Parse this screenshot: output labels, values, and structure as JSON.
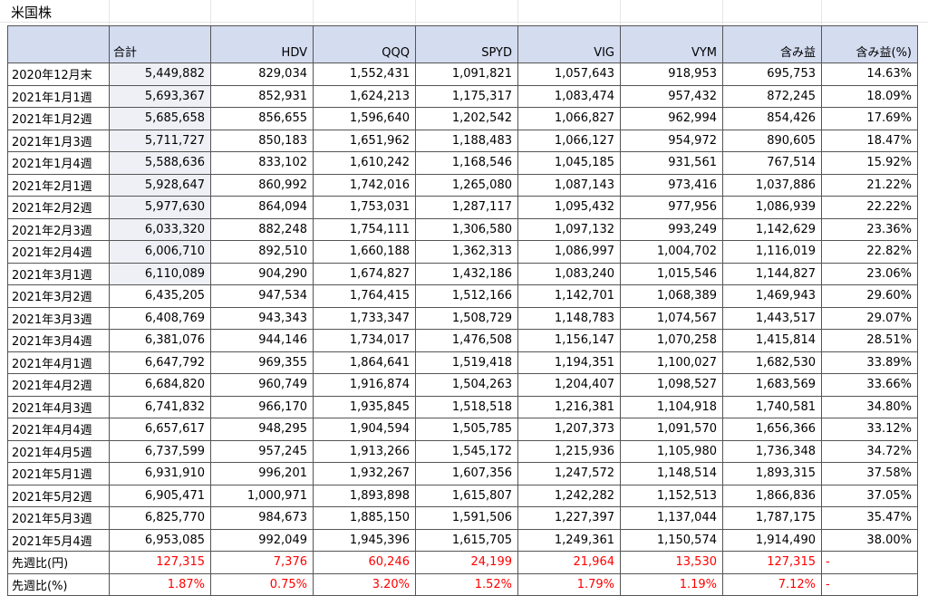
{
  "sheet": {
    "title": "米国株"
  },
  "headers": [
    "",
    "合計",
    "HDV",
    "QQQ",
    "SPYD",
    "VIG",
    "VYM",
    "含み益",
    "含み益(%)"
  ],
  "rows": [
    {
      "label": "2020年12月末",
      "values": [
        "5,449,882",
        "829,034",
        "1,552,431",
        "1,091,821",
        "1,057,643",
        "918,953",
        "695,753",
        "14.63%"
      ]
    },
    {
      "label": "2021年1月1週",
      "values": [
        "5,693,367",
        "852,931",
        "1,624,213",
        "1,175,317",
        "1,083,474",
        "957,432",
        "872,245",
        "18.09%"
      ]
    },
    {
      "label": "2021年1月2週",
      "values": [
        "5,685,658",
        "856,655",
        "1,596,640",
        "1,202,542",
        "1,066,827",
        "962,994",
        "854,426",
        "17.69%"
      ]
    },
    {
      "label": "2021年1月3週",
      "values": [
        "5,711,727",
        "850,183",
        "1,651,962",
        "1,188,483",
        "1,066,127",
        "954,972",
        "890,605",
        "18.47%"
      ]
    },
    {
      "label": "2021年1月4週",
      "values": [
        "5,588,636",
        "833,102",
        "1,610,242",
        "1,168,546",
        "1,045,185",
        "931,561",
        "767,514",
        "15.92%"
      ]
    },
    {
      "label": "2021年2月1週",
      "values": [
        "5,928,647",
        "860,992",
        "1,742,016",
        "1,265,080",
        "1,087,143",
        "973,416",
        "1,037,886",
        "21.22%"
      ]
    },
    {
      "label": "2021年2月2週",
      "values": [
        "5,977,630",
        "864,094",
        "1,753,031",
        "1,287,117",
        "1,095,432",
        "977,956",
        "1,086,939",
        "22.22%"
      ]
    },
    {
      "label": "2021年2月3週",
      "values": [
        "6,033,320",
        "882,248",
        "1,754,111",
        "1,306,580",
        "1,097,132",
        "993,249",
        "1,142,629",
        "23.36%"
      ]
    },
    {
      "label": "2021年2月4週",
      "values": [
        "6,006,710",
        "892,510",
        "1,660,188",
        "1,362,313",
        "1,086,997",
        "1,004,702",
        "1,116,019",
        "22.82%"
      ]
    },
    {
      "label": "2021年3月1週",
      "values": [
        "6,110,089",
        "904,290",
        "1,674,827",
        "1,432,186",
        "1,083,240",
        "1,015,546",
        "1,144,827",
        "23.06%"
      ]
    },
    {
      "label": "2021年3月2週",
      "values": [
        "6,435,205",
        "947,534",
        "1,764,415",
        "1,512,166",
        "1,142,701",
        "1,068,389",
        "1,469,943",
        "29.60%"
      ]
    },
    {
      "label": "2021年3月3週",
      "values": [
        "6,408,769",
        "943,343",
        "1,733,347",
        "1,508,729",
        "1,148,783",
        "1,074,567",
        "1,443,517",
        "29.07%"
      ]
    },
    {
      "label": "2021年3月4週",
      "values": [
        "6,381,076",
        "944,146",
        "1,734,017",
        "1,476,508",
        "1,156,147",
        "1,070,258",
        "1,415,814",
        "28.51%"
      ]
    },
    {
      "label": "2021年4月1週",
      "values": [
        "6,647,792",
        "969,355",
        "1,864,641",
        "1,519,418",
        "1,194,351",
        "1,100,027",
        "1,682,530",
        "33.89%"
      ]
    },
    {
      "label": "2021年4月2週",
      "values": [
        "6,684,820",
        "960,749",
        "1,916,874",
        "1,504,263",
        "1,204,407",
        "1,098,527",
        "1,683,569",
        "33.66%"
      ]
    },
    {
      "label": "2021年4月3週",
      "values": [
        "6,741,832",
        "966,170",
        "1,935,845",
        "1,518,518",
        "1,216,381",
        "1,104,918",
        "1,740,581",
        "34.80%"
      ]
    },
    {
      "label": "2021年4月4週",
      "values": [
        "6,657,617",
        "948,295",
        "1,904,594",
        "1,505,785",
        "1,207,373",
        "1,091,570",
        "1,656,366",
        "33.12%"
      ]
    },
    {
      "label": "2021年4月5週",
      "values": [
        "6,737,599",
        "957,245",
        "1,913,266",
        "1,545,172",
        "1,215,936",
        "1,105,980",
        "1,736,348",
        "34.72%"
      ]
    },
    {
      "label": "2021年5月1週",
      "values": [
        "6,931,910",
        "996,201",
        "1,932,267",
        "1,607,356",
        "1,247,572",
        "1,148,514",
        "1,893,315",
        "37.58%"
      ]
    },
    {
      "label": "2021年5月2週",
      "values": [
        "6,905,471",
        "1,000,971",
        "1,893,898",
        "1,615,807",
        "1,242,282",
        "1,152,513",
        "1,866,836",
        "37.05%"
      ]
    },
    {
      "label": "2021年5月3週",
      "values": [
        "6,825,770",
        "984,673",
        "1,885,150",
        "1,591,506",
        "1,227,397",
        "1,137,044",
        "1,787,175",
        "35.47%"
      ]
    },
    {
      "label": "2021年5月4週",
      "values": [
        "6,953,085",
        "992,049",
        "1,945,396",
        "1,615,705",
        "1,249,361",
        "1,150,574",
        "1,914,490",
        "38.00%"
      ]
    }
  ],
  "deltas": [
    {
      "label": "先週比(円)",
      "values": [
        "127,315",
        "7,376",
        "60,246",
        "24,199",
        "21,964",
        "13,530",
        "127,315"
      ],
      "dash": "-"
    },
    {
      "label": "先週比(%)",
      "values": [
        "1.87%",
        "0.75%",
        "3.20%",
        "1.52%",
        "1.79%",
        "1.19%",
        "7.12%"
      ],
      "dash": "-"
    }
  ],
  "colors": {
    "header_bg": "#d4dcf0",
    "shaded_cell_bg": "#eef0f6",
    "delta_text": "#ff0000",
    "border": "#555555"
  }
}
